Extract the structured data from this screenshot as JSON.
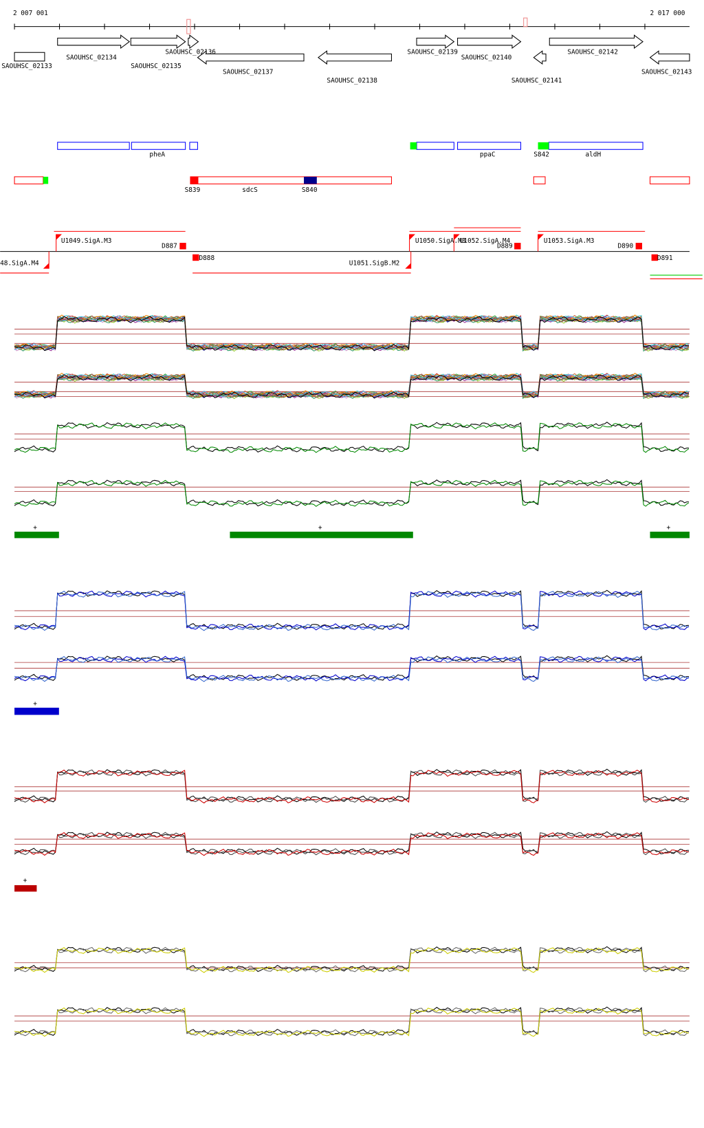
{
  "ruler": {
    "start": "2 007 001",
    "end": "2 017 000"
  },
  "genes": [
    "SAOUHSC_02133",
    "SAOUHSC_02134",
    "SAOUHSC_02135",
    "SAOUHSC_02136",
    "SAOUHSC_02137",
    "SAOUHSC_02138",
    "SAOUHSC_02139",
    "SAOUHSC_02140",
    "SAOUHSC_02141",
    "SAOUHSC_02142",
    "SAOUHSC_02143"
  ],
  "features": [
    "pheA",
    "ppaC",
    "S842",
    "aldH",
    "S839",
    "sdcS",
    "S840"
  ],
  "promoters": [
    "U1049.SigA.M3",
    "D887",
    "D888",
    "48.SigA.M4",
    "U1051.SigB.M2",
    "U1050.SigA.M3",
    "U1052.SigA.M4",
    "D889",
    "U1053.SigA.M3",
    "D890",
    "D891"
  ],
  "markers": [
    "+",
    "+",
    "+",
    "+",
    "+"
  ]
}
